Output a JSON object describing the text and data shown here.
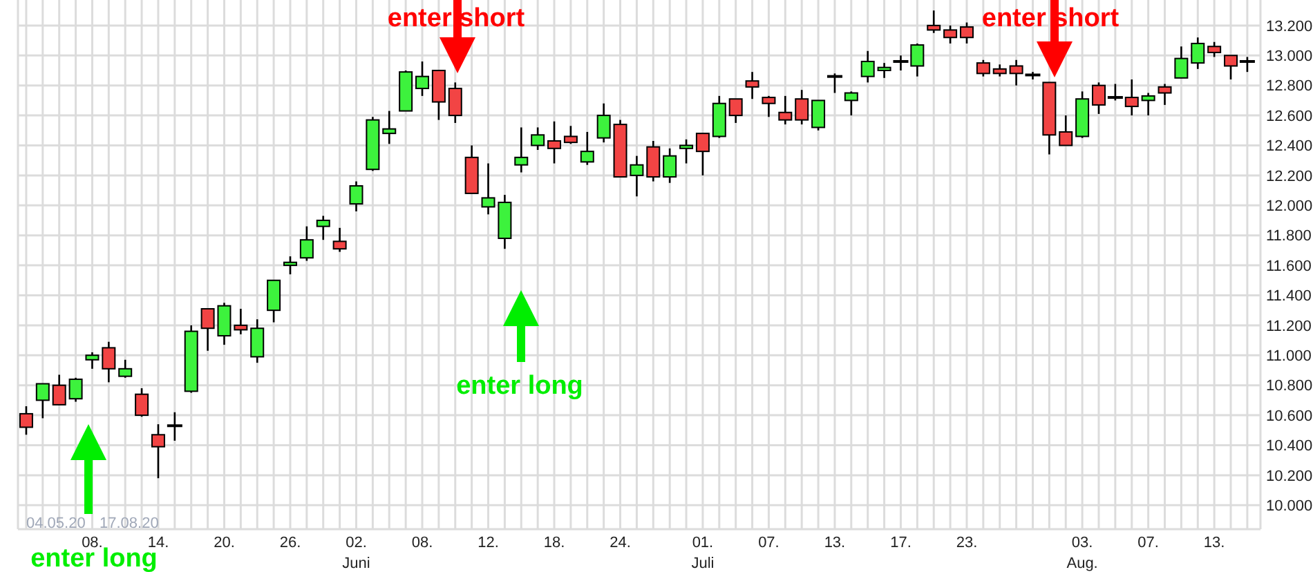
{
  "chart_data": {
    "type": "candlestick",
    "categories": [
      null,
      null,
      null,
      null,
      "08.",
      null,
      null,
      null,
      "14.",
      null,
      null,
      null,
      "20.",
      null,
      null,
      null,
      "26.",
      null,
      null,
      null,
      "02.\nJuni",
      null,
      null,
      null,
      "08.",
      null,
      null,
      null,
      "12.",
      null,
      null,
      null,
      "18.",
      null,
      null,
      null,
      "24.",
      null,
      null,
      null,
      null,
      "01.\nJuli",
      null,
      null,
      null,
      "07.",
      null,
      null,
      null,
      "13.",
      null,
      null,
      null,
      "17.",
      null,
      null,
      null,
      "23.",
      null,
      null,
      null,
      null,
      null,
      null,
      "03.\nAug.",
      null,
      null,
      null,
      "07.",
      null,
      null,
      null,
      "13.",
      null,
      null
    ],
    "ohlc": [
      [
        10610,
        10660,
        10470,
        10520
      ],
      [
        10700,
        10810,
        10580,
        10810
      ],
      [
        10800,
        10870,
        10670,
        10670
      ],
      [
        10710,
        10850,
        10690,
        10840
      ],
      [
        10970,
        11020,
        10910,
        11000
      ],
      [
        11050,
        11090,
        10820,
        10910
      ],
      [
        10860,
        10970,
        10850,
        10910
      ],
      [
        10740,
        10780,
        10590,
        10600
      ],
      [
        10470,
        10540,
        10180,
        10390
      ],
      [
        10530,
        10620,
        10430,
        10530
      ],
      [
        10760,
        11200,
        10750,
        11160
      ],
      [
        11310,
        11310,
        11030,
        11180
      ],
      [
        11130,
        11350,
        11070,
        11330
      ],
      [
        11200,
        11310,
        11140,
        11170
      ],
      [
        10990,
        11240,
        10950,
        11180
      ],
      [
        11300,
        11500,
        11220,
        11500
      ],
      [
        11600,
        11660,
        11540,
        11620
      ],
      [
        11650,
        11860,
        11630,
        11770
      ],
      [
        11860,
        11930,
        11770,
        11900
      ],
      [
        11760,
        11850,
        11690,
        11710
      ],
      [
        12010,
        12160,
        11960,
        12130
      ],
      [
        12240,
        12590,
        12230,
        12570
      ],
      [
        12480,
        12630,
        12410,
        12510
      ],
      [
        12630,
        12900,
        12630,
        12890
      ],
      [
        12780,
        12960,
        12730,
        12860
      ],
      [
        12900,
        12900,
        12570,
        12690
      ],
      [
        12780,
        12820,
        12550,
        12600
      ],
      [
        12320,
        12400,
        12080,
        12080
      ],
      [
        11990,
        12280,
        11940,
        12050
      ],
      [
        11780,
        12070,
        11710,
        12020
      ],
      [
        12270,
        12520,
        12220,
        12320
      ],
      [
        12400,
        12520,
        12370,
        12470
      ],
      [
        12430,
        12560,
        12280,
        12380
      ],
      [
        12460,
        12530,
        12410,
        12420
      ],
      [
        12290,
        12490,
        12270,
        12360
      ],
      [
        12450,
        12680,
        12420,
        12600
      ],
      [
        12540,
        12570,
        12190,
        12190
      ],
      [
        12200,
        12330,
        12060,
        12270
      ],
      [
        12390,
        12430,
        12160,
        12190
      ],
      [
        12190,
        12380,
        12150,
        12330
      ],
      [
        12380,
        12440,
        12280,
        12400
      ],
      [
        12480,
        12480,
        12200,
        12360
      ],
      [
        12460,
        12730,
        12450,
        12680
      ],
      [
        12710,
        12710,
        12550,
        12600
      ],
      [
        12830,
        12890,
        12710,
        12790
      ],
      [
        12720,
        12730,
        12590,
        12680
      ],
      [
        12620,
        12730,
        12540,
        12570
      ],
      [
        12710,
        12770,
        12540,
        12570
      ],
      [
        12520,
        12700,
        12500,
        12700
      ],
      [
        12860,
        12880,
        12750,
        12860
      ],
      [
        12700,
        12760,
        12600,
        12750
      ],
      [
        12860,
        13030,
        12820,
        12960
      ],
      [
        12900,
        12950,
        12850,
        12920
      ],
      [
        12960,
        13000,
        12900,
        12960
      ],
      [
        12930,
        13080,
        12860,
        13070
      ],
      [
        13200,
        13300,
        13150,
        13170
      ],
      [
        13170,
        13200,
        13080,
        13120
      ],
      [
        13190,
        13220,
        13080,
        13120
      ],
      [
        12950,
        12970,
        12860,
        12880
      ],
      [
        12910,
        12940,
        12860,
        12880
      ],
      [
        12930,
        12970,
        12800,
        12880
      ],
      [
        12870,
        12890,
        12840,
        12870
      ],
      [
        12820,
        12820,
        12340,
        12470
      ],
      [
        12490,
        12600,
        12400,
        12400
      ],
      [
        12460,
        12760,
        12450,
        12710
      ],
      [
        12800,
        12820,
        12610,
        12670
      ],
      [
        12720,
        12810,
        12700,
        12720
      ],
      [
        12720,
        12840,
        12600,
        12660
      ],
      [
        12700,
        12750,
        12600,
        12730
      ],
      [
        12790,
        12810,
        12670,
        12750
      ],
      [
        12850,
        13060,
        12850,
        12980
      ],
      [
        12950,
        13120,
        12910,
        13080
      ],
      [
        13060,
        13090,
        12990,
        13020
      ],
      [
        13000,
        13000,
        12840,
        12930
      ],
      [
        12960,
        12990,
        12890,
        12960
      ]
    ],
    "colors": [
      "#f24444",
      "#3df23d",
      "#f24444",
      "#3df23d",
      "#3df23d",
      "#f24444",
      "#3df23d",
      "#f24444",
      "#f24444",
      "#000000",
      "#3df23d",
      "#f24444",
      "#3df23d",
      "#f24444",
      "#3df23d",
      "#3df23d",
      "#3df23d",
      "#3df23d",
      "#3df23d",
      "#f24444",
      "#3df23d",
      "#3df23d",
      "#3df23d",
      "#3df23d",
      "#3df23d",
      "#f24444",
      "#f24444",
      "#f24444",
      "#3df23d",
      "#3df23d",
      "#3df23d",
      "#3df23d",
      "#f24444",
      "#f24444",
      "#3df23d",
      "#3df23d",
      "#f24444",
      "#3df23d",
      "#f24444",
      "#3df23d",
      "#3df23d",
      "#f24444",
      "#3df23d",
      "#f24444",
      "#f24444",
      "#f24444",
      "#f24444",
      "#f24444",
      "#3df23d",
      "#000000",
      "#3df23d",
      "#3df23d",
      "#3df23d",
      "#000000",
      "#3df23d",
      "#f24444",
      "#f24444",
      "#f24444",
      "#f24444",
      "#f24444",
      "#f24444",
      "#000000",
      "#f24444",
      "#f24444",
      "#3df23d",
      "#f24444",
      "#000000",
      "#f24444",
      "#3df23d",
      "#f24444",
      "#3df23d",
      "#3df23d",
      "#f24444",
      "#f24444",
      "#000000"
    ],
    "ylim": [
      9840,
      13370
    ],
    "yticks": [
      {
        "value": 10000,
        "label": "10.000"
      },
      {
        "value": 10200,
        "label": "10.200"
      },
      {
        "value": 10400,
        "label": "10.400"
      },
      {
        "value": 10600,
        "label": "10.600"
      },
      {
        "value": 10800,
        "label": "10.800"
      },
      {
        "value": 11000,
        "label": "11.000"
      },
      {
        "value": 11200,
        "label": "11.200"
      },
      {
        "value": 11400,
        "label": "11.400"
      },
      {
        "value": 11600,
        "label": "11.600"
      },
      {
        "value": 11800,
        "label": "11.800"
      },
      {
        "value": 12000,
        "label": "12.000"
      },
      {
        "value": 12200,
        "label": "12.200"
      },
      {
        "value": 12400,
        "label": "12.400"
      },
      {
        "value": 12600,
        "label": "12.600"
      },
      {
        "value": 12800,
        "label": "12.800"
      },
      {
        "value": 13000,
        "label": "13.000"
      },
      {
        "value": 13200,
        "label": "13.200"
      }
    ],
    "grid": true,
    "annotations": [
      "enter short",
      "enter short",
      "enter long",
      "enter long",
      "04.05.20",
      "17.08.20"
    ]
  }
}
